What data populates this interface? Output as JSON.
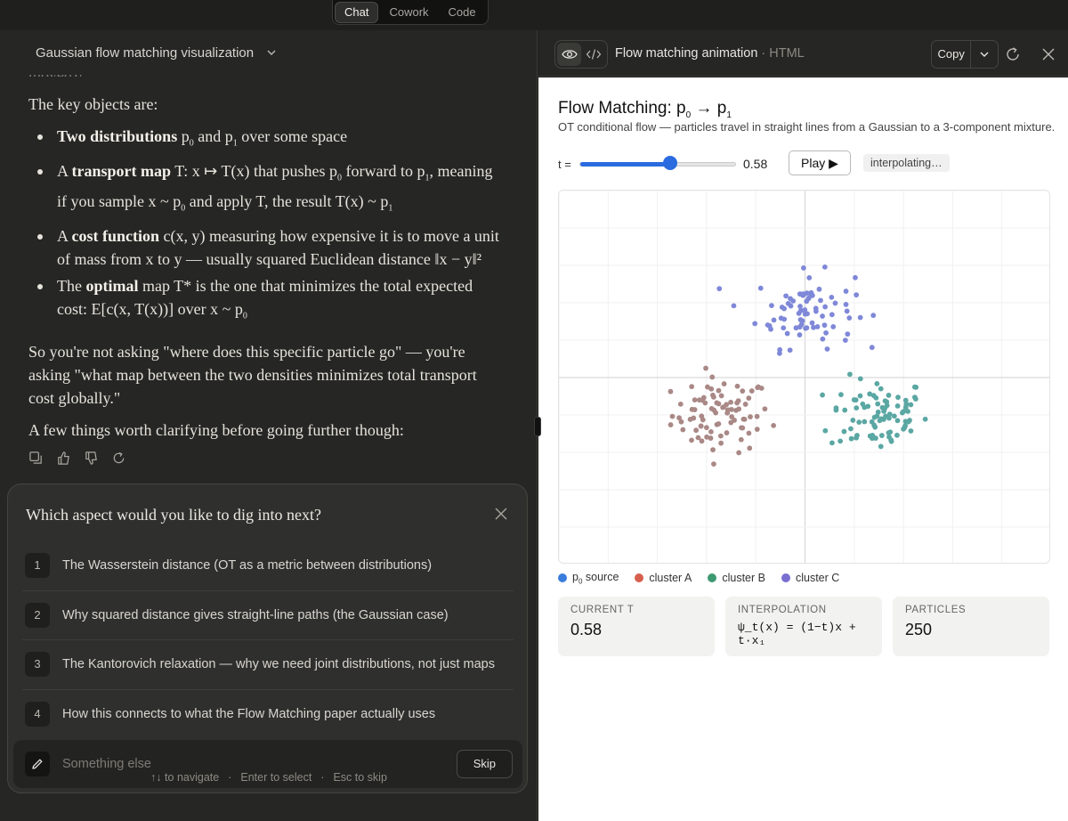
{
  "modes": [
    "Chat",
    "Cowork",
    "Code"
  ],
  "active_mode": "Chat",
  "chat": {
    "title": "Gaussian flow matching visualization",
    "clipped_line": "moved)?",
    "intro": "The key objects are:",
    "bullets": [
      {
        "html": "<b>Two distributions</b> p<sub>0</sub> and p<sub>1</sub> over some space"
      },
      {
        "html": "A <b>transport map</b> T: x ↦ T(x) that pushes p<sub>0</sub> forward to p<sub>1</sub>, meaning if you sample x ~ p<sub>0</sub> and apply T, the result T(x) ~ p<sub>1</sub>"
      },
      {
        "html": "A <b>cost function</b> c(x, y) measuring how expensive it is to move a unit of mass from x to y — usually squared Euclidean distance ‖x − y‖²"
      },
      {
        "html": "The <b>optimal</b> map T* is the one that minimizes the total expected cost: E[c(x, T(x))] over x ~ p<sub>0</sub>"
      }
    ],
    "paragraph": "So you're not asking \"where does this specific particle go\" — you're asking \"what map between the two densities minimizes total transport cost globally.\"",
    "closing": "A few things worth clarifying before going further though:"
  },
  "question": {
    "title": "Which aspect would you like to dig into next?",
    "options": [
      {
        "num": "1",
        "label": "The Wasserstein distance (OT as a metric between distributions)"
      },
      {
        "num": "2",
        "label": "Why squared distance gives straight-line paths (the Gaussian case)"
      },
      {
        "num": "3",
        "label": "The Kantorovich relaxation — why we need joint distributions, not just maps"
      },
      {
        "num": "4",
        "label": "How this connects to what the Flow Matching paper actually uses"
      }
    ],
    "else_placeholder": "Something else",
    "skip_label": "Skip"
  },
  "hints": {
    "navigate": "↑↓ to navigate",
    "select": "Enter to select",
    "skip": "Esc to skip"
  },
  "artifact": {
    "title": "Flow matching animation",
    "type": "· HTML",
    "copy_label": "Copy",
    "heading_html": "Flow Matching: p<sub>0</sub> → p<sub>1</sub>",
    "subtitle": "OT conditional flow — particles travel in straight lines from a Gaussian to a 3-component mixture.",
    "t_label": "t =",
    "t": 0.58,
    "t_display": "0.58",
    "play_label": "Play ▶",
    "status": "interpolating…",
    "legend": [
      {
        "html": "p<sub>0</sub> source",
        "color": "#3b7ddd"
      },
      {
        "html": "cluster A",
        "color": "#d6604d"
      },
      {
        "html": "cluster B",
        "color": "#3d9970"
      },
      {
        "html": "cluster C",
        "color": "#7a6fd0"
      }
    ],
    "stats": {
      "current_t_label": "CURRENT T",
      "current_t_value": "0.58",
      "interp_label": "INTERPOLATION",
      "interp_formula": "ψ_t(x) = (1−t)x + t·x₁",
      "particles_label": "PARTICLES",
      "particles_value": "250"
    }
  },
  "chart_data": {
    "type": "scatter",
    "t": 0.58,
    "particles": 250,
    "xlim": [
      -5,
      5
    ],
    "ylim": [
      -5,
      5
    ],
    "grid": true,
    "series": [
      {
        "color": "#a98886",
        "center": [
          -1.7,
          -1.0
        ],
        "spread": 0.5,
        "count": 85
      },
      {
        "color": "#5aa7a3",
        "center": [
          1.5,
          -1.0
        ],
        "spread": 0.5,
        "count": 85
      },
      {
        "color": "#7f88d8",
        "center": [
          0.0,
          1.8
        ],
        "spread": 0.5,
        "count": 80
      }
    ]
  },
  "colors": {
    "accent": "#2a6be0",
    "cluster_a_point": "#a98886",
    "cluster_b_point": "#5aa7a3",
    "cluster_c_point": "#7f88d8"
  }
}
